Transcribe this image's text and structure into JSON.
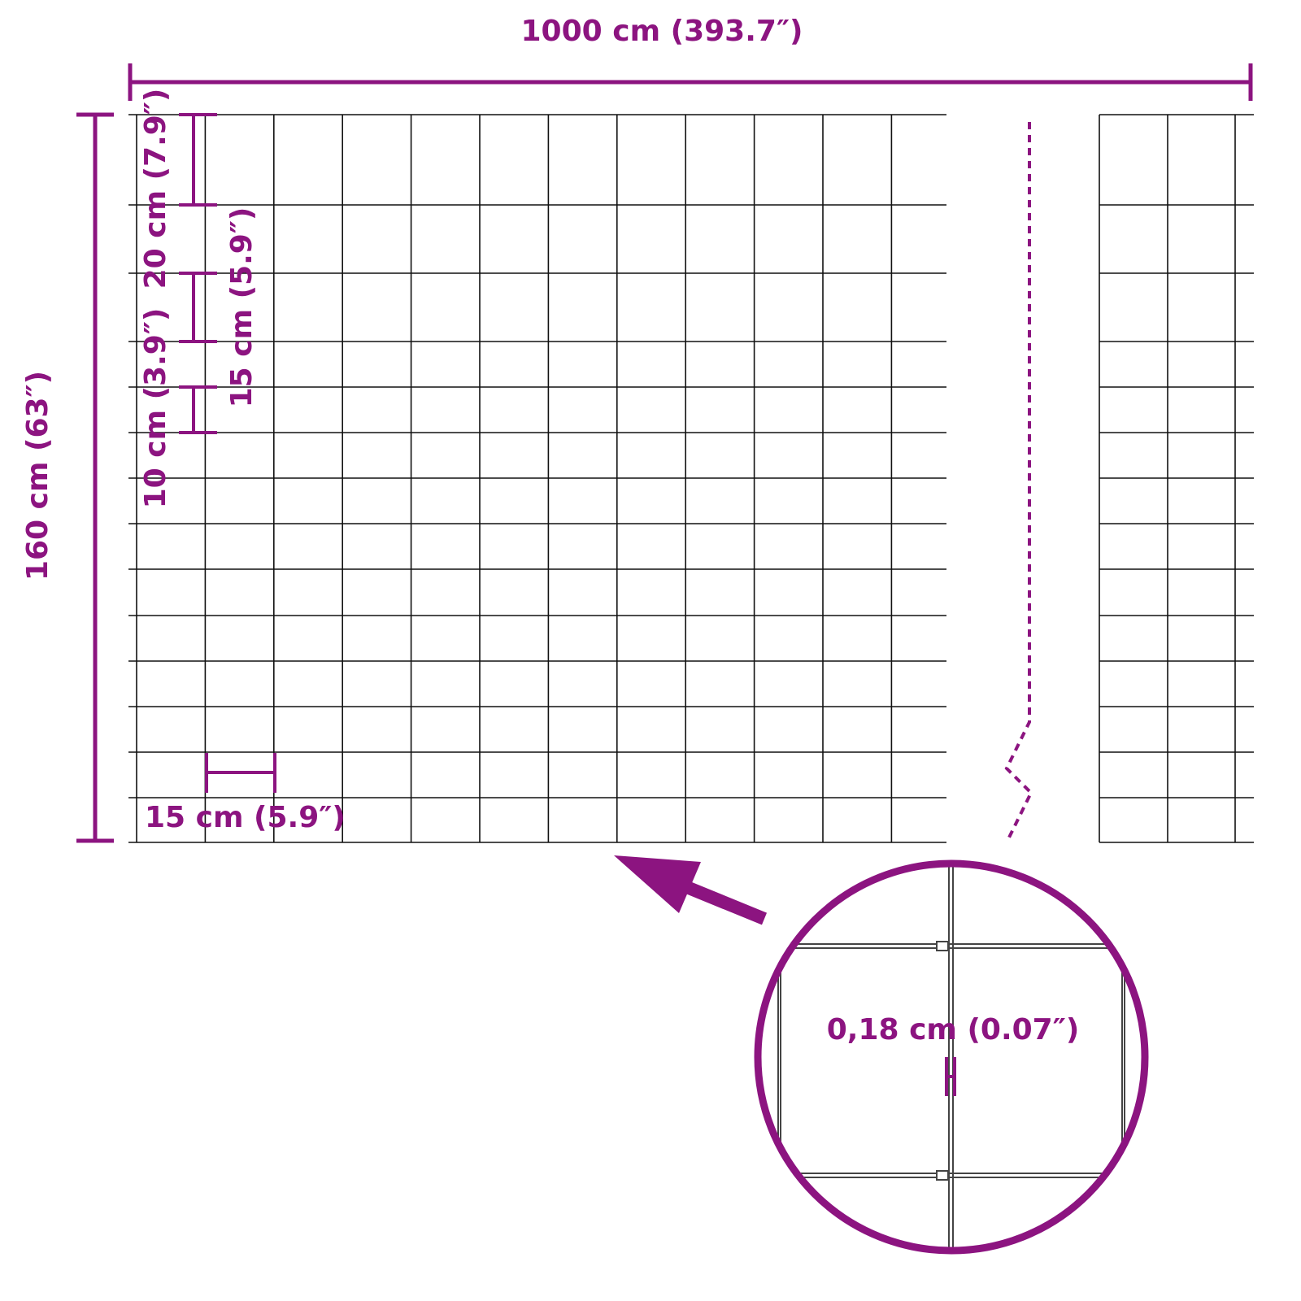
{
  "colors": {
    "accent": "#8c1480",
    "wire": "#111111"
  },
  "labels": {
    "total_width": "1000 cm (393.7″)",
    "total_height": "160 cm (63″)",
    "top_spacing": "20 cm (7.9″)",
    "middle_spacing": "15 cm (5.9″)",
    "bottom_spacing": "10 cm (3.9″)",
    "mesh_width": "15 cm (5.9″)",
    "wire_diameter": "0,18 cm (0.07″)"
  }
}
